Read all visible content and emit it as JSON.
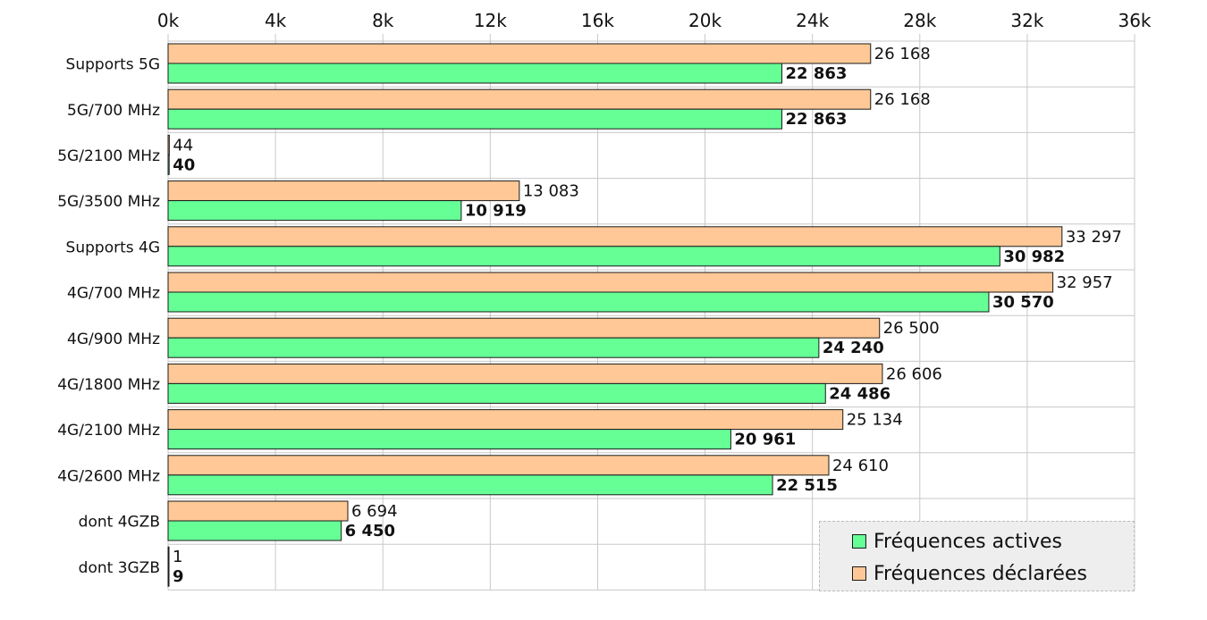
{
  "chart_data": {
    "type": "bar",
    "orientation": "horizontal",
    "categories": [
      "Supports 5G",
      "5G/700 MHz",
      "5G/2100 MHz",
      "5G/3500 MHz",
      "Supports 4G",
      "4G/700 MHz",
      "4G/900 MHz",
      "4G/1800 MHz",
      "4G/2100 MHz",
      "4G/2600 MHz",
      "dont 4GZB",
      "dont 3GZB"
    ],
    "series": [
      {
        "name": "Fréquences déclarées",
        "color": "#ffc896",
        "values": [
          26168,
          26168,
          44,
          13083,
          33297,
          32957,
          26500,
          26606,
          25134,
          24610,
          6694,
          1
        ],
        "labels": [
          "26 168",
          "26 168",
          "44",
          "13 083",
          "33 297",
          "32 957",
          "26 500",
          "26 606",
          "25 134",
          "24 610",
          "6 694",
          "1"
        ]
      },
      {
        "name": "Fréquences actives",
        "color": "#66ff96",
        "values": [
          22863,
          22863,
          40,
          10919,
          30982,
          30570,
          24240,
          24486,
          20961,
          22515,
          6450,
          9
        ],
        "labels": [
          "22 863",
          "22 863",
          "40",
          "10 919",
          "30 982",
          "30 570",
          "24 240",
          "24 486",
          "20 961",
          "22 515",
          "6 450",
          "9"
        ]
      }
    ],
    "xlim": [
      0,
      36000
    ],
    "xticks": [
      "0k",
      "4k",
      "8k",
      "12k",
      "16k",
      "20k",
      "24k",
      "28k",
      "32k",
      "36k"
    ],
    "grid": true,
    "legend_position": "bottom-right"
  },
  "legend": {
    "active_label": "Fréquences actives",
    "declared_label": "Fréquences déclarées"
  }
}
